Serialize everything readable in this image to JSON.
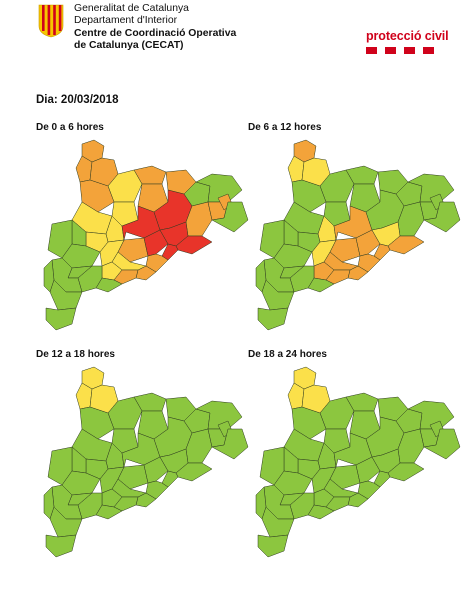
{
  "header": {
    "org_line1": "Generalitat de Catalunya",
    "org_line2": "Departament d'Interior",
    "org_line3": "Centre de Coordinació Operativa",
    "org_line4": "de Catalunya (CECAT)",
    "logo_icon": "generalitat-logo-icon",
    "brand_label": "protecció civil",
    "brand_color": "#d0021b"
  },
  "date_label": "Dia: 20/03/2018",
  "legend_colors": {
    "green": "#8cc63f",
    "yellow": "#fbe04a",
    "orange": "#f3a33a",
    "red": "#e8342a"
  },
  "panels": [
    {
      "title": "De 0 a 6 hores",
      "regions": [
        {
          "id": "val-aran",
          "level": "orange"
        },
        {
          "id": "alta-ribagorca",
          "level": "orange"
        },
        {
          "id": "pallars-sobira",
          "level": "orange"
        },
        {
          "id": "cerdanya",
          "level": "orange"
        },
        {
          "id": "alt-urgell",
          "level": "yellow"
        },
        {
          "id": "pallars-jussa",
          "level": "orange"
        },
        {
          "id": "solsones",
          "level": "yellow"
        },
        {
          "id": "bergueda",
          "level": "orange"
        },
        {
          "id": "ripolles",
          "level": "orange"
        },
        {
          "id": "garrotxa",
          "level": "green"
        },
        {
          "id": "alt-emporda",
          "level": "green"
        },
        {
          "id": "noguera",
          "level": "yellow"
        },
        {
          "id": "segarra",
          "level": "yellow"
        },
        {
          "id": "bages",
          "level": "red"
        },
        {
          "id": "osona",
          "level": "red"
        },
        {
          "id": "selva",
          "level": "orange"
        },
        {
          "id": "girones",
          "level": "orange"
        },
        {
          "id": "pla-estany",
          "level": "orange"
        },
        {
          "id": "baix-emporda",
          "level": "green"
        },
        {
          "id": "anoia",
          "level": "orange"
        },
        {
          "id": "valles-occ",
          "level": "red"
        },
        {
          "id": "valles-or",
          "level": "red"
        },
        {
          "id": "maresme",
          "level": "red"
        },
        {
          "id": "barcelones",
          "level": "red"
        },
        {
          "id": "baix-llobregat",
          "level": "orange"
        },
        {
          "id": "garraf",
          "level": "orange"
        },
        {
          "id": "alt-penedes",
          "level": "yellow"
        },
        {
          "id": "urgell",
          "level": "yellow"
        },
        {
          "id": "pla-urgell",
          "level": "green"
        },
        {
          "id": "segria",
          "level": "green"
        },
        {
          "id": "garrigues",
          "level": "green"
        },
        {
          "id": "conca",
          "level": "yellow"
        },
        {
          "id": "alt-camp",
          "level": "yellow"
        },
        {
          "id": "baix-penedes",
          "level": "orange"
        },
        {
          "id": "tarragones",
          "level": "green"
        },
        {
          "id": "baix-camp",
          "level": "green"
        },
        {
          "id": "priorat",
          "level": "green"
        },
        {
          "id": "ribera",
          "level": "green"
        },
        {
          "id": "terra-alta",
          "level": "green"
        },
        {
          "id": "baix-ebre",
          "level": "green"
        },
        {
          "id": "montsia",
          "level": "green"
        }
      ]
    },
    {
      "title": "De 6 a 12 hores",
      "regions": [
        {
          "id": "val-aran",
          "level": "orange"
        },
        {
          "id": "alta-ribagorca",
          "level": "yellow"
        },
        {
          "id": "pallars-sobira",
          "level": "yellow"
        },
        {
          "id": "cerdanya",
          "level": "green"
        },
        {
          "id": "alt-urgell",
          "level": "green"
        },
        {
          "id": "pallars-jussa",
          "level": "green"
        },
        {
          "id": "solsones",
          "level": "green"
        },
        {
          "id": "bergueda",
          "level": "green"
        },
        {
          "id": "ripolles",
          "level": "green"
        },
        {
          "id": "garrotxa",
          "level": "green"
        },
        {
          "id": "alt-emporda",
          "level": "green"
        },
        {
          "id": "noguera",
          "level": "green"
        },
        {
          "id": "segarra",
          "level": "yellow"
        },
        {
          "id": "bages",
          "level": "orange"
        },
        {
          "id": "osona",
          "level": "green"
        },
        {
          "id": "selva",
          "level": "green"
        },
        {
          "id": "girones",
          "level": "green"
        },
        {
          "id": "pla-estany",
          "level": "green"
        },
        {
          "id": "baix-emporda",
          "level": "green"
        },
        {
          "id": "anoia",
          "level": "orange"
        },
        {
          "id": "valles-occ",
          "level": "orange"
        },
        {
          "id": "valles-or",
          "level": "yellow"
        },
        {
          "id": "maresme",
          "level": "orange"
        },
        {
          "id": "barcelones",
          "level": "orange"
        },
        {
          "id": "baix-llobregat",
          "level": "orange"
        },
        {
          "id": "garraf",
          "level": "orange"
        },
        {
          "id": "alt-penedes",
          "level": "orange"
        },
        {
          "id": "urgell",
          "level": "green"
        },
        {
          "id": "pla-urgell",
          "level": "green"
        },
        {
          "id": "segria",
          "level": "green"
        },
        {
          "id": "garrigues",
          "level": "green"
        },
        {
          "id": "conca",
          "level": "yellow"
        },
        {
          "id": "alt-camp",
          "level": "orange"
        },
        {
          "id": "baix-penedes",
          "level": "orange"
        },
        {
          "id": "tarragones",
          "level": "green"
        },
        {
          "id": "baix-camp",
          "level": "green"
        },
        {
          "id": "priorat",
          "level": "green"
        },
        {
          "id": "ribera",
          "level": "green"
        },
        {
          "id": "terra-alta",
          "level": "green"
        },
        {
          "id": "baix-ebre",
          "level": "green"
        },
        {
          "id": "montsia",
          "level": "green"
        }
      ]
    },
    {
      "title": "De 12 a 18 hores",
      "regions": [
        {
          "id": "val-aran",
          "level": "yellow"
        },
        {
          "id": "alta-ribagorca",
          "level": "yellow"
        },
        {
          "id": "pallars-sobira",
          "level": "yellow"
        },
        {
          "id": "cerdanya",
          "level": "green"
        },
        {
          "id": "alt-urgell",
          "level": "green"
        },
        {
          "id": "pallars-jussa",
          "level": "green"
        },
        {
          "id": "solsones",
          "level": "green"
        },
        {
          "id": "bergueda",
          "level": "green"
        },
        {
          "id": "ripolles",
          "level": "green"
        },
        {
          "id": "garrotxa",
          "level": "green"
        },
        {
          "id": "alt-emporda",
          "level": "green"
        },
        {
          "id": "noguera",
          "level": "green"
        },
        {
          "id": "segarra",
          "level": "green"
        },
        {
          "id": "bages",
          "level": "green"
        },
        {
          "id": "osona",
          "level": "green"
        },
        {
          "id": "selva",
          "level": "green"
        },
        {
          "id": "girones",
          "level": "green"
        },
        {
          "id": "pla-estany",
          "level": "green"
        },
        {
          "id": "baix-emporda",
          "level": "green"
        },
        {
          "id": "anoia",
          "level": "green"
        },
        {
          "id": "valles-occ",
          "level": "green"
        },
        {
          "id": "valles-or",
          "level": "green"
        },
        {
          "id": "maresme",
          "level": "green"
        },
        {
          "id": "barcelones",
          "level": "green"
        },
        {
          "id": "baix-llobregat",
          "level": "green"
        },
        {
          "id": "garraf",
          "level": "green"
        },
        {
          "id": "alt-penedes",
          "level": "green"
        },
        {
          "id": "urgell",
          "level": "green"
        },
        {
          "id": "pla-urgell",
          "level": "green"
        },
        {
          "id": "segria",
          "level": "green"
        },
        {
          "id": "garrigues",
          "level": "green"
        },
        {
          "id": "conca",
          "level": "green"
        },
        {
          "id": "alt-camp",
          "level": "green"
        },
        {
          "id": "baix-penedes",
          "level": "green"
        },
        {
          "id": "tarragones",
          "level": "green"
        },
        {
          "id": "baix-camp",
          "level": "green"
        },
        {
          "id": "priorat",
          "level": "green"
        },
        {
          "id": "ribera",
          "level": "green"
        },
        {
          "id": "terra-alta",
          "level": "green"
        },
        {
          "id": "baix-ebre",
          "level": "green"
        },
        {
          "id": "montsia",
          "level": "green"
        }
      ]
    },
    {
      "title": "De 18 a 24 hores",
      "regions": [
        {
          "id": "val-aran",
          "level": "yellow"
        },
        {
          "id": "alta-ribagorca",
          "level": "yellow"
        },
        {
          "id": "pallars-sobira",
          "level": "yellow"
        },
        {
          "id": "cerdanya",
          "level": "green"
        },
        {
          "id": "alt-urgell",
          "level": "green"
        },
        {
          "id": "pallars-jussa",
          "level": "green"
        },
        {
          "id": "solsones",
          "level": "green"
        },
        {
          "id": "bergueda",
          "level": "green"
        },
        {
          "id": "ripolles",
          "level": "green"
        },
        {
          "id": "garrotxa",
          "level": "green"
        },
        {
          "id": "alt-emporda",
          "level": "green"
        },
        {
          "id": "noguera",
          "level": "green"
        },
        {
          "id": "segarra",
          "level": "green"
        },
        {
          "id": "bages",
          "level": "green"
        },
        {
          "id": "osona",
          "level": "green"
        },
        {
          "id": "selva",
          "level": "green"
        },
        {
          "id": "girones",
          "level": "green"
        },
        {
          "id": "pla-estany",
          "level": "green"
        },
        {
          "id": "baix-emporda",
          "level": "green"
        },
        {
          "id": "anoia",
          "level": "green"
        },
        {
          "id": "valles-occ",
          "level": "green"
        },
        {
          "id": "valles-or",
          "level": "green"
        },
        {
          "id": "maresme",
          "level": "green"
        },
        {
          "id": "barcelones",
          "level": "green"
        },
        {
          "id": "baix-llobregat",
          "level": "green"
        },
        {
          "id": "garraf",
          "level": "green"
        },
        {
          "id": "alt-penedes",
          "level": "green"
        },
        {
          "id": "urgell",
          "level": "green"
        },
        {
          "id": "pla-urgell",
          "level": "green"
        },
        {
          "id": "segria",
          "level": "green"
        },
        {
          "id": "garrigues",
          "level": "green"
        },
        {
          "id": "conca",
          "level": "green"
        },
        {
          "id": "alt-camp",
          "level": "green"
        },
        {
          "id": "baix-penedes",
          "level": "green"
        },
        {
          "id": "tarragones",
          "level": "green"
        },
        {
          "id": "baix-camp",
          "level": "green"
        },
        {
          "id": "priorat",
          "level": "green"
        },
        {
          "id": "ribera",
          "level": "green"
        },
        {
          "id": "terra-alta",
          "level": "green"
        },
        {
          "id": "baix-ebre",
          "level": "green"
        },
        {
          "id": "montsia",
          "level": "green"
        }
      ]
    }
  ]
}
